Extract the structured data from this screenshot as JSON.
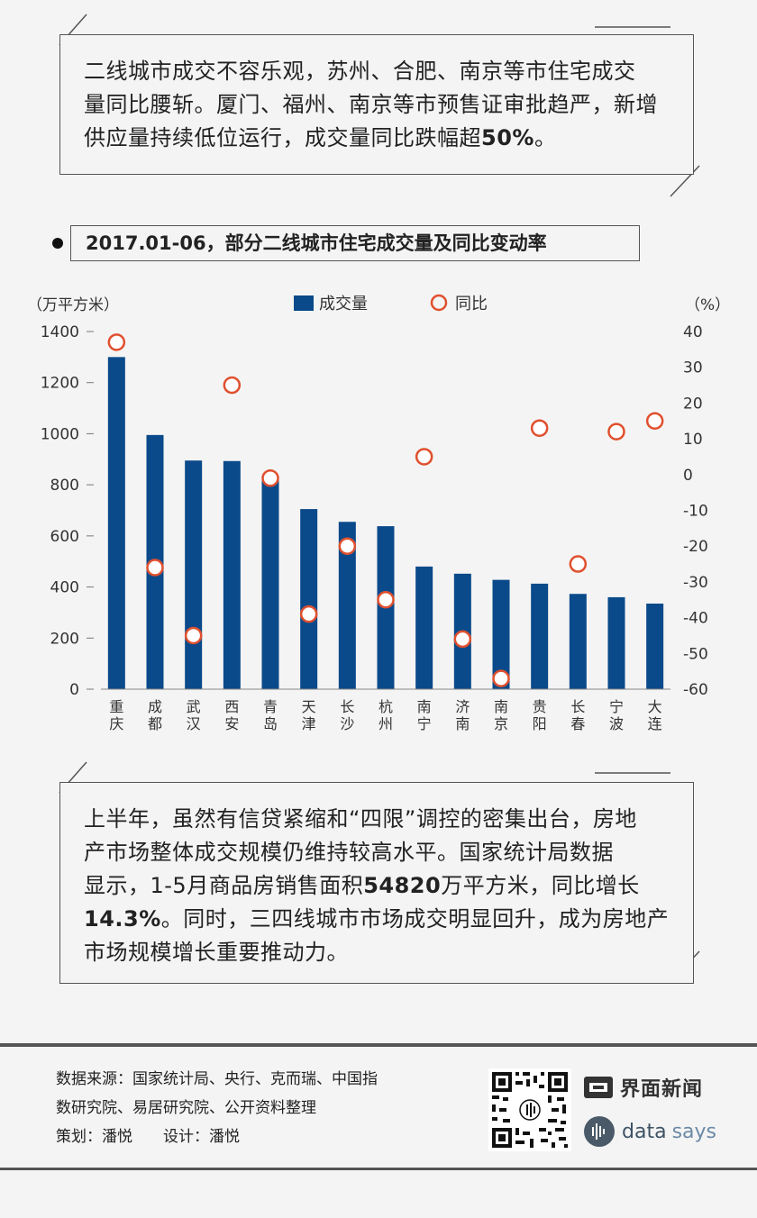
{
  "top_note": {
    "line1": "二线城市成交不容乐观，苏州、合肥、南京等市住宅成交",
    "line2": "量同比腰斩。厦门、福州、南京等市预售证审批趋严，新增",
    "line3_pre": "供应量持续低位运行，成交量同比跌幅超",
    "line3_bold": "50%",
    "line3_post": "。"
  },
  "chart_title": "2017.01-06，部分二线城市住宅成交量及同比变动率",
  "chart_data": {
    "type": "bar",
    "title": "2017.01-06，部分二线城市住宅成交量及同比变动率",
    "left_unit": "（万平方米）",
    "right_unit": "（%）",
    "legend": {
      "bar": "成交量",
      "point": "同比"
    },
    "categories": [
      [
        "重",
        "庆"
      ],
      [
        "成",
        "都"
      ],
      [
        "武",
        "汉"
      ],
      [
        "西",
        "安"
      ],
      [
        "青",
        "岛"
      ],
      [
        "天",
        "津"
      ],
      [
        "长",
        "沙"
      ],
      [
        "杭",
        "州"
      ],
      [
        "南",
        "宁"
      ],
      [
        "济",
        "南"
      ],
      [
        "南",
        "京"
      ],
      [
        "贵",
        "阳"
      ],
      [
        "长",
        "春"
      ],
      [
        "宁",
        "波"
      ],
      [
        "大",
        "连"
      ]
    ],
    "series": [
      {
        "name": "成交量",
        "axis": "left",
        "values": [
          1300,
          995,
          895,
          893,
          830,
          705,
          655,
          638,
          480,
          452,
          428,
          413,
          373,
          360,
          335
        ]
      },
      {
        "name": "同比",
        "axis": "right",
        "values": [
          37,
          -26,
          -45,
          25,
          -1,
          -39,
          -20,
          -35,
          5,
          -46,
          -57,
          13,
          -25,
          12,
          15
        ]
      }
    ],
    "ylim_left": [
      0,
      1400
    ],
    "yticks_left": [
      "0",
      "200",
      "400",
      "600",
      "800",
      "1000",
      "1200",
      "1400"
    ],
    "ylim_right": [
      -60,
      40
    ],
    "yticks_right": [
      "-60",
      "-50",
      "-40",
      "-30",
      "-20",
      "-10",
      "0",
      "10",
      "20",
      "30",
      "40"
    ],
    "colors": {
      "bar": "#0a4a8a",
      "point": "#e0502e"
    }
  },
  "bottom_note": {
    "line1": "上半年，虽然有信贷紧缩和“四限”调控的密集出台，房地",
    "line2": "产市场整体成交规模仍维持较高水平。国家统计局数据",
    "line3_pre": "显示，1-5月商品房销售面积",
    "line3_bold": "54820",
    "line3_mid": "万平方米，同比增长",
    "line4_bold": "14.3%",
    "line4_post": "。同时，三四线城市市场成交明显回升，成为房地产",
    "line5": "市场规模增长重要推动力。"
  },
  "footer": {
    "source_line1": "数据来源：国家统计局、央行、克而瑞、中国指",
    "source_line2": "数研究院、易居研究院、公开资料整理",
    "credits": "策划：潘悦　　设计：潘悦",
    "brand1": "界面新闻",
    "brand2_a": "data",
    "brand2_b": "says"
  }
}
